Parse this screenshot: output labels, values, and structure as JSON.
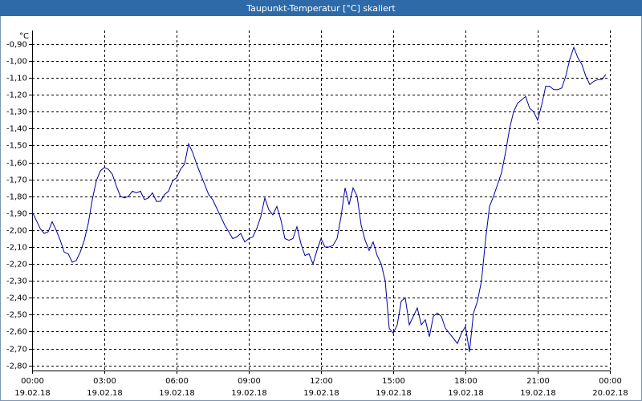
{
  "chart_data": {
    "type": "line",
    "title": "Taupunkt-Temperatur [°C] skaliert",
    "y_unit": "°C",
    "x": [
      0,
      10,
      20,
      30,
      40,
      50,
      60,
      70,
      80,
      90,
      100,
      110,
      120,
      130,
      140,
      150,
      160,
      170,
      180,
      190,
      200,
      210,
      220,
      230,
      240,
      250,
      260,
      270,
      280,
      290,
      300,
      310,
      320,
      330,
      340,
      350,
      360,
      370,
      380,
      390,
      400,
      410,
      420,
      430,
      440,
      450,
      460,
      470,
      480,
      490,
      500,
      510,
      520,
      530,
      540,
      550,
      560,
      570,
      580,
      590,
      600,
      610,
      620,
      630,
      640,
      650,
      660,
      670,
      680,
      690,
      700,
      710,
      720,
      730,
      740,
      750,
      760,
      770,
      780,
      790,
      800,
      810,
      820,
      830,
      840,
      850,
      860,
      870,
      880,
      890,
      900,
      910,
      920,
      930,
      940,
      950,
      960,
      970,
      980,
      990,
      1000,
      1010,
      1020,
      1030,
      1040,
      1050,
      1060,
      1070,
      1080,
      1090,
      1100,
      1110,
      1120,
      1130,
      1140,
      1150,
      1160,
      1170,
      1180,
      1190,
      1200,
      1210,
      1220,
      1230,
      1240,
      1250,
      1260,
      1270,
      1280,
      1290,
      1300,
      1310,
      1320,
      1330,
      1340,
      1350,
      1360,
      1370,
      1380,
      1390,
      1400,
      1410,
      1420,
      1430
    ],
    "series": [
      {
        "name": "Taupunkt-Temperatur",
        "color": "#0000a0",
        "values": [
          -1.89,
          -1.94,
          -1.99,
          -2.02,
          -2.01,
          -1.95,
          -2.0,
          -2.06,
          -2.13,
          -2.14,
          -2.19,
          -2.18,
          -2.13,
          -2.06,
          -1.96,
          -1.82,
          -1.71,
          -1.65,
          -1.63,
          -1.64,
          -1.67,
          -1.74,
          -1.8,
          -1.81,
          -1.8,
          -1.77,
          -1.78,
          -1.77,
          -1.82,
          -1.81,
          -1.78,
          -1.83,
          -1.83,
          -1.79,
          -1.77,
          -1.71,
          -1.69,
          -1.64,
          -1.61,
          -1.49,
          -1.54,
          -1.61,
          -1.67,
          -1.73,
          -1.79,
          -1.82,
          -1.87,
          -1.92,
          -1.97,
          -2.01,
          -2.05,
          -2.04,
          -2.02,
          -2.07,
          -2.05,
          -2.04,
          -1.99,
          -1.92,
          -1.81,
          -1.88,
          -1.91,
          -1.86,
          -1.94,
          -2.05,
          -2.06,
          -2.05,
          -1.98,
          -2.08,
          -2.15,
          -2.14,
          -2.2,
          -2.12,
          -2.05,
          -2.1,
          -2.1,
          -2.09,
          -2.05,
          -1.92,
          -1.75,
          -1.85,
          -1.75,
          -1.8,
          -1.97,
          -2.06,
          -2.12,
          -2.07,
          -2.15,
          -2.2,
          -2.3,
          -2.58,
          -2.61,
          -2.56,
          -2.42,
          -2.4,
          -2.56,
          -2.51,
          -2.46,
          -2.56,
          -2.53,
          -2.63,
          -2.51,
          -2.49,
          -2.51,
          -2.58,
          -2.61,
          -2.64,
          -2.67,
          -2.61,
          -2.57,
          -2.72,
          -2.49,
          -2.42,
          -2.3,
          -2.06,
          -1.86,
          -1.8,
          -1.73,
          -1.66,
          -1.54,
          -1.4,
          -1.3,
          -1.25,
          -1.23,
          -1.21,
          -1.28,
          -1.3,
          -1.35,
          -1.26,
          -1.15,
          -1.15,
          -1.17,
          -1.17,
          -1.16,
          -1.09,
          -0.99,
          -0.92,
          -0.98,
          -1.02,
          -1.09,
          -1.14,
          -1.12,
          -1.11,
          -1.11,
          -1.08
        ]
      }
    ],
    "xlim": [
      0,
      1440
    ],
    "xticks": [
      {
        "value": 0,
        "label": "00:00",
        "date": "19.02.18"
      },
      {
        "value": 180,
        "label": "03:00",
        "date": "19.02.18"
      },
      {
        "value": 360,
        "label": "06:00",
        "date": "19.02.18"
      },
      {
        "value": 540,
        "label": "09:00",
        "date": "19.02.18"
      },
      {
        "value": 720,
        "label": "12:00",
        "date": "19.02.18"
      },
      {
        "value": 900,
        "label": "15:00",
        "date": "19.02.18"
      },
      {
        "value": 1080,
        "label": "18:00",
        "date": "19.02.18"
      },
      {
        "value": 1260,
        "label": "21:00",
        "date": "19.02.18"
      },
      {
        "value": 1440,
        "label": "00:00",
        "date": "20.02.18"
      }
    ],
    "ylim": [
      -2.83,
      -0.82
    ],
    "yticks": [
      {
        "value": -0.9,
        "label": "-0,90"
      },
      {
        "value": -1.0,
        "label": "-1,00"
      },
      {
        "value": -1.1,
        "label": "-1,10"
      },
      {
        "value": -1.2,
        "label": "-1,20"
      },
      {
        "value": -1.3,
        "label": "-1,30"
      },
      {
        "value": -1.4,
        "label": "-1,40"
      },
      {
        "value": -1.5,
        "label": "-1,50"
      },
      {
        "value": -1.6,
        "label": "-1,60"
      },
      {
        "value": -1.7,
        "label": "-1,70"
      },
      {
        "value": -1.8,
        "label": "-1,80"
      },
      {
        "value": -1.9,
        "label": "-1,90"
      },
      {
        "value": -2.0,
        "label": "-2,00"
      },
      {
        "value": -2.1,
        "label": "-2,10"
      },
      {
        "value": -2.2,
        "label": "-2,20"
      },
      {
        "value": -2.3,
        "label": "-2,30"
      },
      {
        "value": -2.4,
        "label": "-2,40"
      },
      {
        "value": -2.5,
        "label": "-2,50"
      },
      {
        "value": -2.6,
        "label": "-2,60"
      },
      {
        "value": -2.7,
        "label": "-2,70"
      },
      {
        "value": -2.8,
        "label": "-2,80"
      }
    ],
    "grid": true
  }
}
